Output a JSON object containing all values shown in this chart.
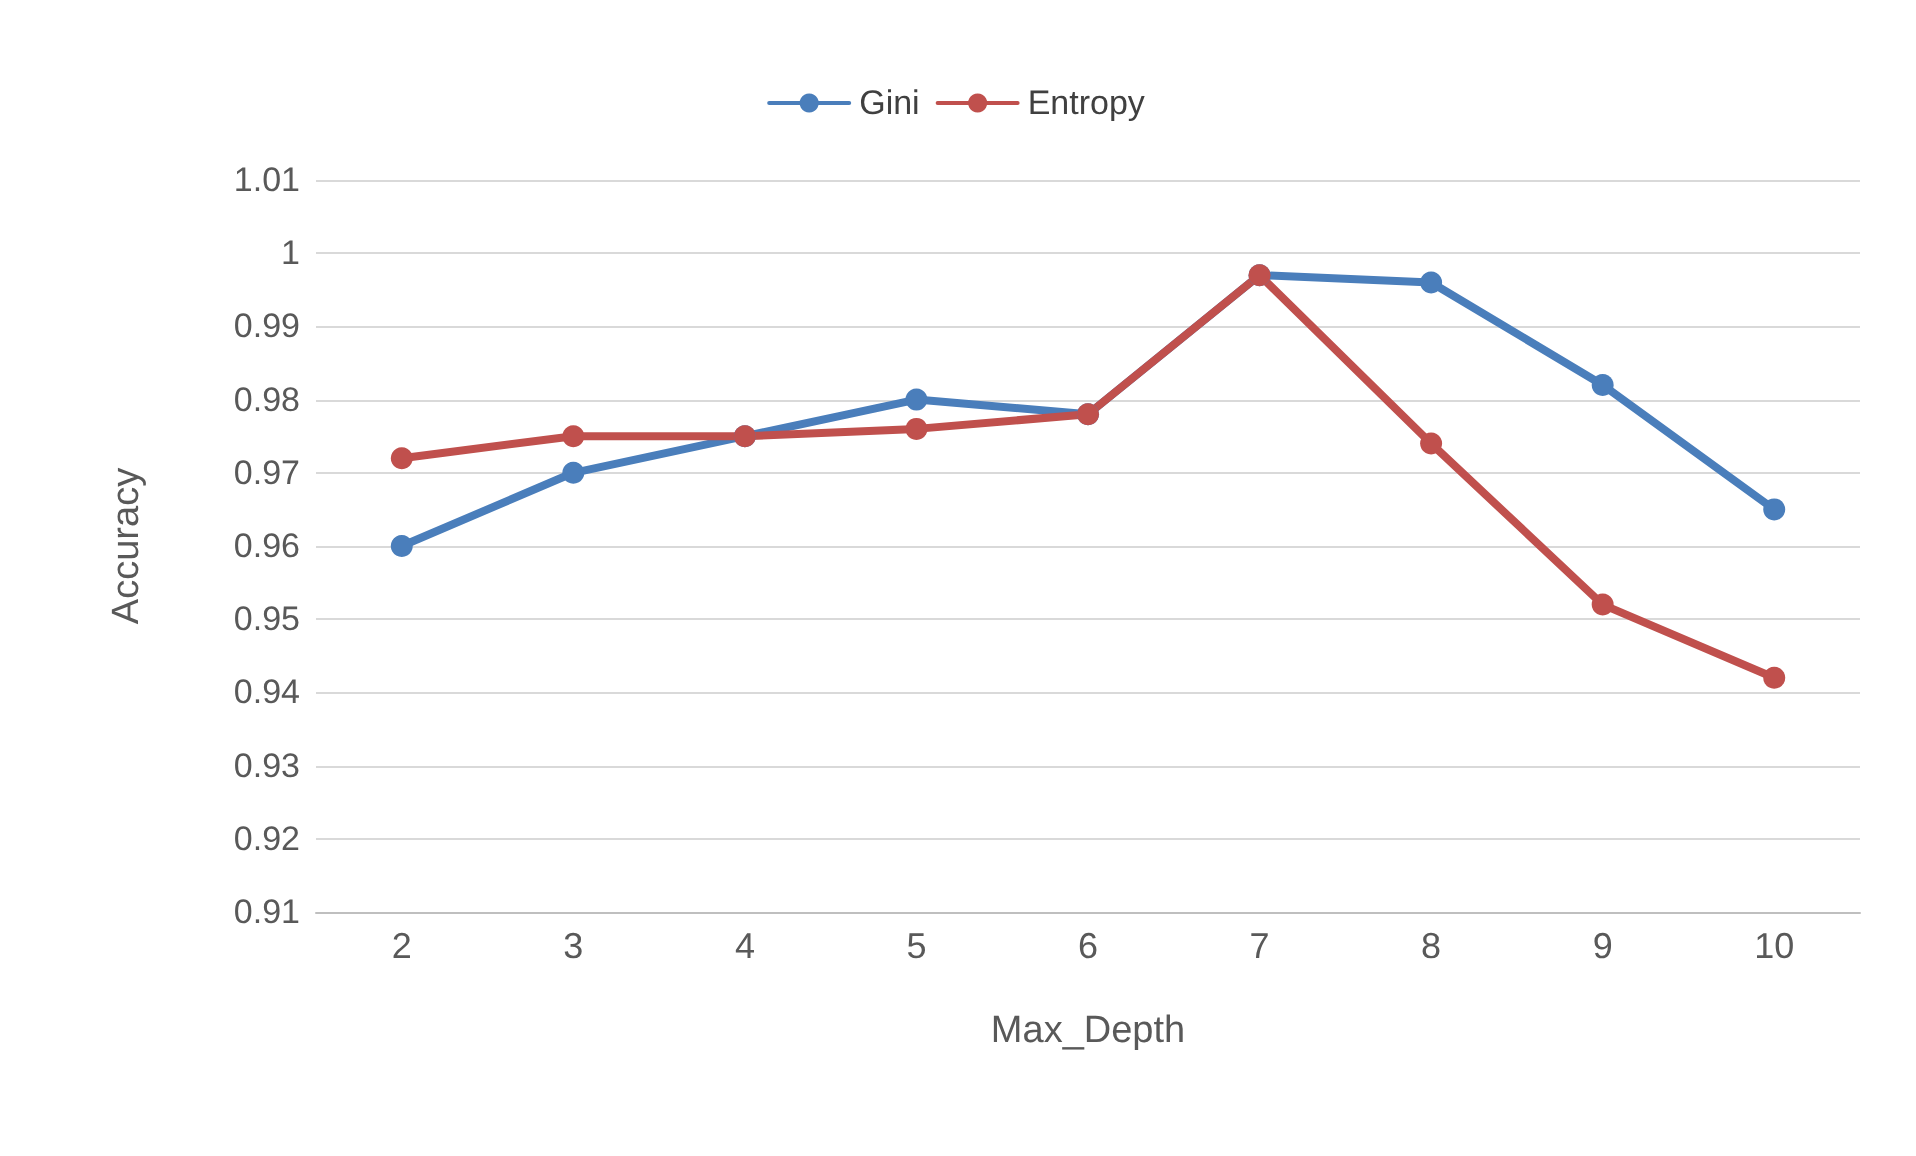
{
  "chart_data": {
    "type": "line",
    "xlabel": "Max_Depth",
    "ylabel": "Accuracy",
    "categories": [
      "2",
      "3",
      "4",
      "5",
      "6",
      "7",
      "8",
      "9",
      "10"
    ],
    "series": [
      {
        "name": "Gini",
        "color": "#4a7ebb",
        "values": [
          0.96,
          0.97,
          0.975,
          0.98,
          0.978,
          0.997,
          0.996,
          0.982,
          0.965
        ]
      },
      {
        "name": "Entropy",
        "color": "#c0504d",
        "values": [
          0.972,
          0.975,
          0.975,
          0.976,
          0.978,
          0.997,
          0.974,
          0.952,
          0.942
        ]
      }
    ],
    "ylim": [
      0.91,
      1.01
    ],
    "yticks": [
      0.91,
      0.92,
      0.93,
      0.94,
      0.95,
      0.96,
      0.97,
      0.98,
      0.99,
      1,
      1.01
    ],
    "grid": "y",
    "legend": "top",
    "marker": "circle",
    "line_style": "solid"
  }
}
